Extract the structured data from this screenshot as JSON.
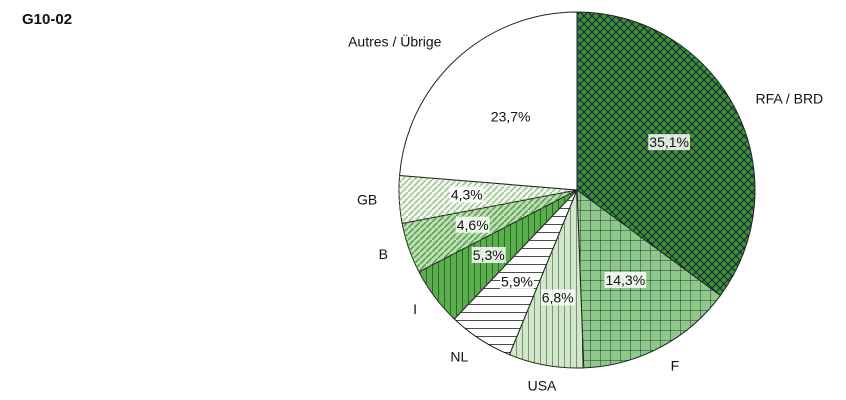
{
  "chart_data": {
    "type": "pie",
    "title": "G10-02",
    "categories": [
      "RFA / BRD",
      "F",
      "USA",
      "NL",
      "I",
      "B",
      "GB",
      "Autres / Übrige"
    ],
    "values": [
      35.1,
      14.3,
      6.8,
      5.9,
      5.3,
      4.6,
      4.3,
      23.7
    ],
    "value_labels": [
      "35,1%",
      "14,3%",
      "6,8%",
      "5,9%",
      "5,3%",
      "4,6%",
      "4,3%",
      "23,7%"
    ],
    "colors": [
      "#3f8f3a",
      "#8fc98a",
      "#cfe8c8",
      "#ffffff",
      "#5aae4e",
      "#b9e0b0",
      "#f2f8f0",
      "#ffffff"
    ]
  }
}
